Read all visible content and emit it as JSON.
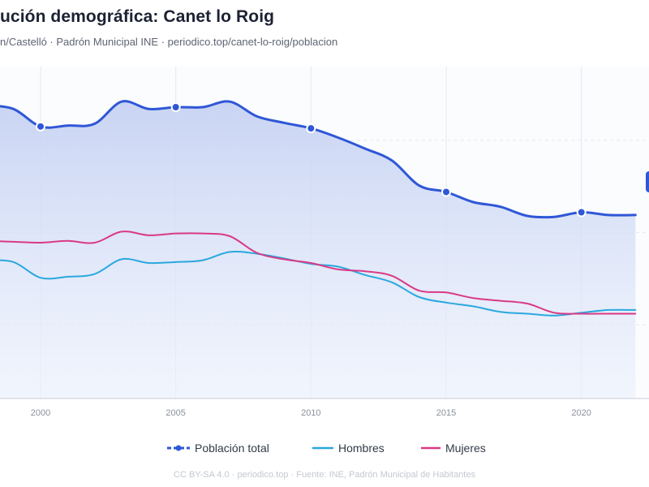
{
  "header": {
    "title": "ución demográfica: Canet lo Roig",
    "subtitle": "n/Castelló · Padrón Municipal INE · periodico.top/canet-lo-roig/poblacion"
  },
  "legend": {
    "total": "Población total",
    "hombres": "Hombres",
    "mujeres": "Mujeres"
  },
  "footer": "CC BY-SA 4.0 · periodico.top · Fuente: INE, Padrón Municipal de Habitantes",
  "colors": {
    "total": "#2f57d6",
    "hombres": "#2aa8de",
    "mujeres": "#d93a85",
    "area": "#c9d4f3",
    "grid": "#e4e8f0"
  },
  "chart_data": {
    "type": "line",
    "x": [
      1998,
      1999,
      2000,
      2001,
      2002,
      2003,
      2004,
      2005,
      2006,
      2007,
      2008,
      2009,
      2010,
      2011,
      2012,
      2013,
      2014,
      2015,
      2016,
      2017,
      2018,
      2019,
      2020,
      2021,
      2022
    ],
    "xticks": [
      2000,
      2005,
      2010,
      2015,
      2020
    ],
    "xlim": [
      1998.5,
      2022.5
    ],
    "ylim": [
      0,
      1800
    ],
    "grid": true,
    "legend_position": "bottom",
    "series": [
      {
        "name": "Población total",
        "key": "total",
        "markers": [
          2000,
          2005,
          2010,
          2015,
          2020
        ],
        "values": [
          1590,
          1570,
          1475,
          1480,
          1490,
          1610,
          1570,
          1580,
          1580,
          1610,
          1530,
          1495,
          1465,
          1415,
          1355,
          1290,
          1155,
          1120,
          1065,
          1040,
          990,
          985,
          1010,
          995,
          995
        ]
      },
      {
        "name": "Hombres",
        "key": "hombres",
        "values": [
          750,
          740,
          655,
          660,
          675,
          755,
          735,
          740,
          750,
          795,
          785,
          760,
          730,
          715,
          670,
          630,
          550,
          520,
          500,
          470,
          460,
          450,
          465,
          480,
          480
        ]
      },
      {
        "name": "Mujeres",
        "key": "mujeres",
        "values": [
          855,
          850,
          845,
          855,
          845,
          905,
          885,
          895,
          895,
          880,
          790,
          755,
          735,
          700,
          690,
          665,
          585,
          575,
          545,
          530,
          515,
          465,
          460,
          460,
          460
        ]
      }
    ]
  }
}
